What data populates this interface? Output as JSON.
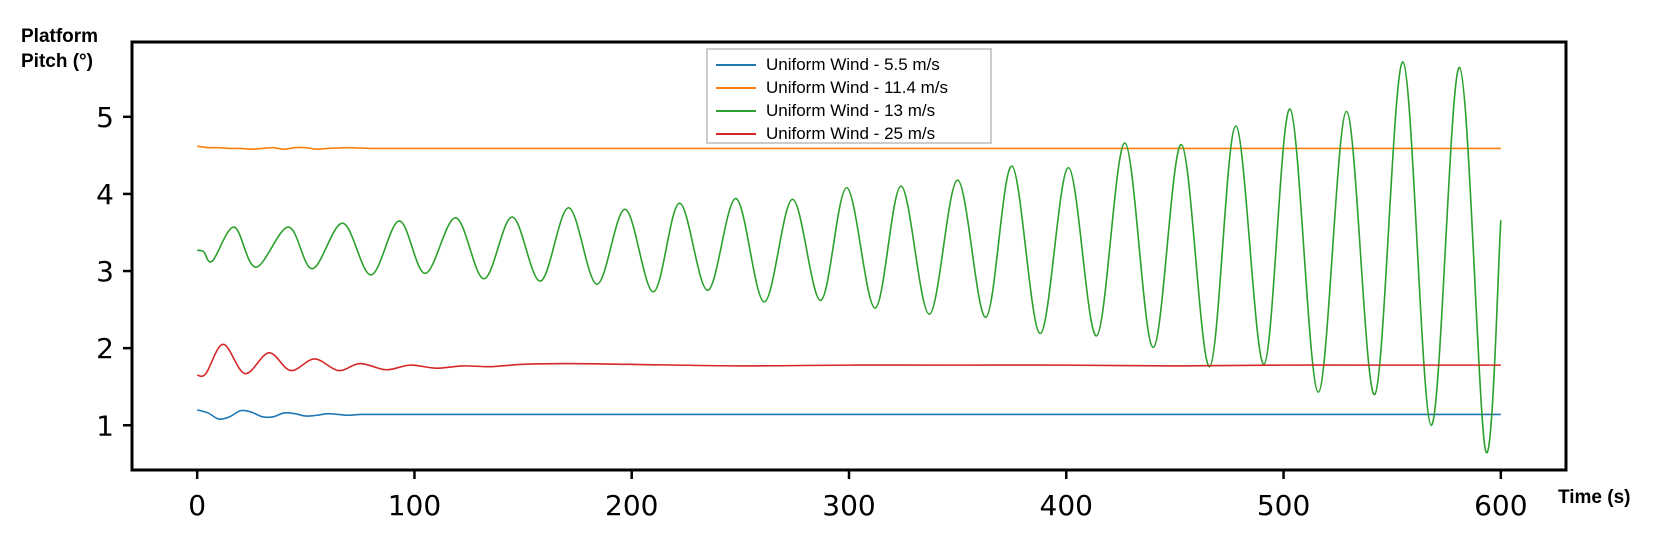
{
  "chart_data": {
    "type": "line",
    "title": "",
    "ylabel_lines": [
      "Platform",
      "Pitch (°)"
    ],
    "xlabel": "Time (s)",
    "xlim": [
      -30,
      630
    ],
    "ylim": [
      0.42,
      5.97
    ],
    "xticks": [
      0,
      100,
      200,
      300,
      400,
      500,
      600
    ],
    "yticks": [
      1,
      2,
      3,
      4,
      5
    ],
    "grid": false,
    "legend_position": "top-center",
    "series": [
      {
        "name": "Uniform Wind - 5.5 m/s",
        "color": "#1f77b4",
        "x": [
          0,
          5,
          10,
          15,
          20,
          25,
          30,
          35,
          40,
          45,
          50,
          55,
          60,
          65,
          70,
          75,
          80,
          90,
          100,
          200,
          300,
          400,
          500,
          600
        ],
        "y": [
          1.2,
          1.16,
          1.08,
          1.11,
          1.19,
          1.17,
          1.11,
          1.11,
          1.16,
          1.15,
          1.12,
          1.13,
          1.15,
          1.14,
          1.13,
          1.14,
          1.14,
          1.14,
          1.14,
          1.14,
          1.14,
          1.14,
          1.14,
          1.14
        ]
      },
      {
        "name": "Uniform Wind - 11.4 m/s",
        "color": "#ff7f0e",
        "x": [
          0,
          5,
          10,
          15,
          20,
          25,
          30,
          35,
          40,
          45,
          50,
          55,
          60,
          70,
          80,
          90,
          100,
          150,
          200,
          300,
          400,
          500,
          600
        ],
        "y": [
          4.62,
          4.6,
          4.6,
          4.59,
          4.59,
          4.58,
          4.59,
          4.6,
          4.58,
          4.6,
          4.6,
          4.58,
          4.59,
          4.6,
          4.59,
          4.59,
          4.59,
          4.59,
          4.59,
          4.59,
          4.59,
          4.59,
          4.59
        ]
      },
      {
        "name": "Uniform Wind - 13 m/s",
        "color": "#2ca02c",
        "x": [
          0,
          3,
          7,
          17,
          27,
          42,
          53,
          67,
          80,
          93,
          105,
          119,
          132,
          145,
          158,
          171,
          184,
          197,
          210,
          222,
          235,
          248,
          261,
          274,
          287,
          299,
          312,
          324,
          337,
          350,
          363,
          375,
          388,
          401,
          414,
          427,
          440,
          453,
          466,
          478,
          491,
          503,
          516,
          529,
          542,
          555,
          568,
          581,
          593,
          600
        ],
        "y": [
          3.27,
          3.25,
          3.13,
          3.57,
          3.05,
          3.57,
          3.03,
          3.62,
          2.95,
          3.65,
          2.97,
          3.69,
          2.9,
          3.7,
          2.87,
          3.82,
          2.83,
          3.8,
          2.73,
          3.88,
          2.75,
          3.94,
          2.6,
          3.93,
          2.62,
          4.08,
          2.52,
          4.1,
          2.44,
          4.18,
          2.4,
          4.36,
          2.19,
          4.34,
          2.16,
          4.66,
          2.01,
          4.64,
          1.76,
          4.88,
          1.79,
          5.1,
          1.43,
          5.07,
          1.4,
          5.71,
          1.0,
          5.64,
          0.67,
          3.66
        ]
      },
      {
        "name": "Uniform Wind - 25 m/s",
        "color": "#d62728",
        "x": [
          0,
          4,
          12,
          22,
          33,
          43,
          54,
          65,
          75,
          87,
          98,
          110,
          122,
          135,
          150,
          170,
          200,
          250,
          300,
          350,
          400,
          450,
          500,
          550,
          600
        ],
        "y": [
          1.65,
          1.67,
          2.05,
          1.67,
          1.94,
          1.71,
          1.86,
          1.71,
          1.8,
          1.72,
          1.78,
          1.74,
          1.77,
          1.76,
          1.79,
          1.8,
          1.79,
          1.77,
          1.78,
          1.78,
          1.78,
          1.77,
          1.78,
          1.78,
          1.78
        ]
      }
    ]
  }
}
